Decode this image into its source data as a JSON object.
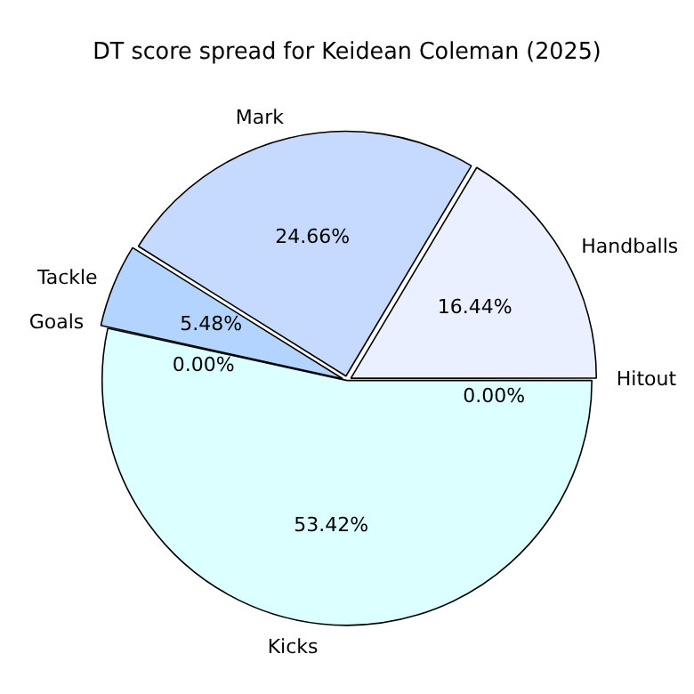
{
  "chart_data": {
    "type": "pie",
    "title": "DT score spread for Keidean Coleman (2025)",
    "categories": [
      "Hitout",
      "Handballs",
      "Mark",
      "Tackle",
      "Goals",
      "Kicks"
    ],
    "values": [
      0,
      16.44,
      24.66,
      5.48,
      0,
      53.42
    ],
    "value_labels": [
      "0.00%",
      "16.44%",
      "24.66%",
      "5.48%",
      "0.00%",
      "53.42%"
    ],
    "colors": [
      "#d0e4ff",
      "#eaf0ff",
      "#c6d9ff",
      "#b3d4ff",
      "#a8c8f0",
      "#dcffff"
    ],
    "legend": false
  }
}
